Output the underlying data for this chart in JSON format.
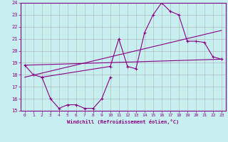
{
  "xlabel": "Windchill (Refroidissement éolien,°C)",
  "background_color": "#c8eff0",
  "grid_color": "#b0b0b0",
  "line_color": "#880088",
  "xlim": [
    -0.5,
    23.5
  ],
  "ylim": [
    15,
    24
  ],
  "xticks": [
    0,
    1,
    2,
    3,
    4,
    5,
    6,
    7,
    8,
    9,
    10,
    11,
    12,
    13,
    14,
    15,
    16,
    17,
    18,
    19,
    20,
    21,
    22,
    23
  ],
  "yticks": [
    15,
    16,
    17,
    18,
    19,
    20,
    21,
    22,
    23,
    24
  ],
  "series1_x": [
    0,
    1,
    2,
    10,
    11,
    12,
    13,
    14,
    15,
    16,
    17,
    18,
    19,
    20,
    21,
    22,
    23
  ],
  "series1_y": [
    18.8,
    18.0,
    17.8,
    18.7,
    21.0,
    18.7,
    18.5,
    21.5,
    23.0,
    24.0,
    23.3,
    23.0,
    20.8,
    20.8,
    20.7,
    19.5,
    19.3
  ],
  "series2_x": [
    2,
    3,
    4,
    5,
    6,
    7,
    8,
    9,
    10
  ],
  "series2_y": [
    17.8,
    16.0,
    15.2,
    15.5,
    15.5,
    15.2,
    15.2,
    16.0,
    17.8
  ],
  "series3_x": [
    0,
    23
  ],
  "series3_y": [
    18.8,
    19.3
  ],
  "series4_x": [
    0,
    23
  ],
  "series4_y": [
    17.8,
    21.7
  ]
}
